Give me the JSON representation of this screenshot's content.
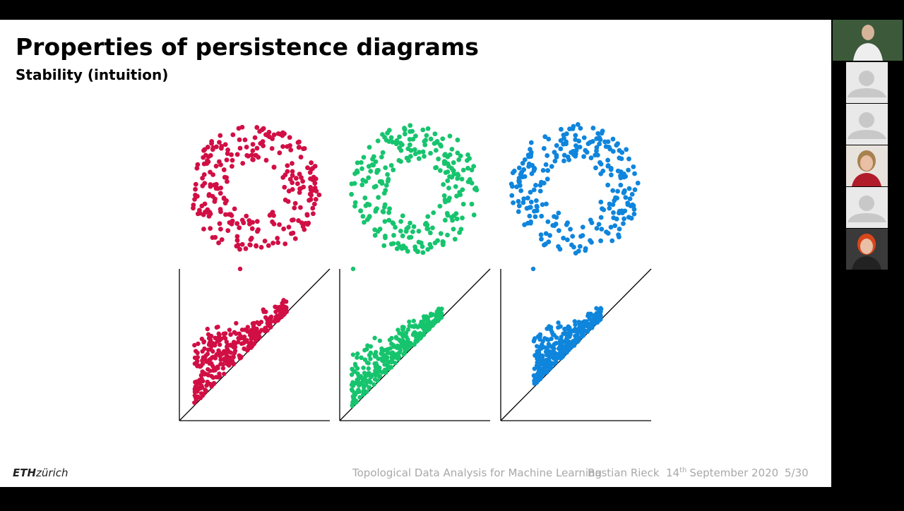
{
  "slide": {
    "title": "Properties of persistence diagrams",
    "subtitle": "Stability (intuition)"
  },
  "footer": {
    "logo_bold": "ETH",
    "logo_rest": "zürich",
    "course": "Topological Data Analysis for Machine Learning",
    "author": "Bastian Rieck",
    "date_day": "14",
    "date_suffix": "th",
    "date_rest": "September 2020",
    "page": "5/30"
  }
}
